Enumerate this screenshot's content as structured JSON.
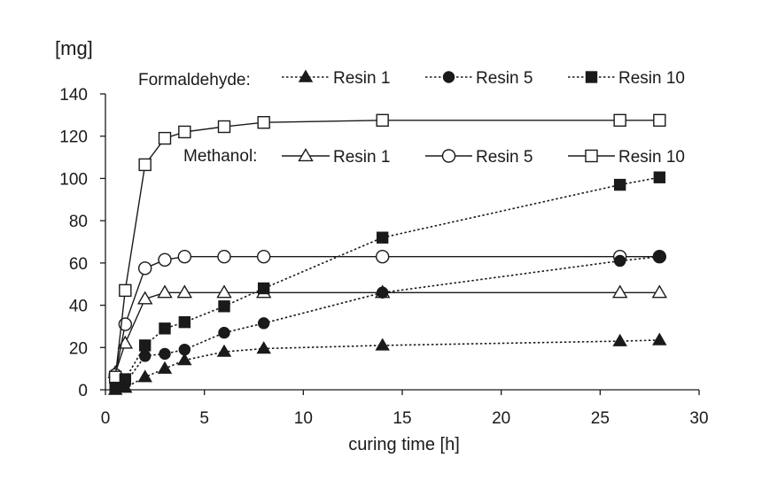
{
  "chart_data": {
    "type": "line",
    "ylabel": "[mg]",
    "xlabel": "curing time  [h]",
    "xlim": [
      0,
      30
    ],
    "ylim": [
      0,
      140
    ],
    "x_ticks": [
      "0",
      "5",
      "10",
      "15",
      "20",
      "25",
      "30"
    ],
    "y_ticks": [
      "0",
      "20",
      "40",
      "60",
      "80",
      "100",
      "120",
      "140"
    ],
    "grid": false,
    "legend": {
      "formaldehyde_label": "Formaldehyde:",
      "methanol_label": "Methanol:"
    },
    "series": [
      {
        "name": "Resin 1",
        "group": "formaldehyde",
        "line": "dotted",
        "marker": "triangle",
        "filled": true,
        "x": [
          0.5,
          1,
          2,
          3,
          4,
          6,
          8,
          14,
          26,
          28
        ],
        "y": [
          0,
          1,
          6,
          10,
          14,
          18,
          19.5,
          21,
          23,
          23.5
        ]
      },
      {
        "name": "Resin 5",
        "group": "formaldehyde",
        "line": "dotted",
        "marker": "circle",
        "filled": true,
        "x": [
          0.5,
          1,
          2,
          3,
          4,
          6,
          8,
          14,
          26,
          28
        ],
        "y": [
          1,
          3,
          16,
          17,
          19,
          27,
          31.5,
          46,
          61,
          63
        ]
      },
      {
        "name": "Resin 10",
        "group": "formaldehyde",
        "line": "dotted",
        "marker": "square",
        "filled": true,
        "x": [
          0.5,
          1,
          2,
          3,
          4,
          6,
          8,
          14,
          26,
          28
        ],
        "y": [
          1,
          5,
          21,
          29,
          32,
          39.5,
          48,
          72,
          97,
          100.5
        ]
      },
      {
        "name": "Resin 1",
        "group": "methanol",
        "line": "solid",
        "marker": "triangle",
        "filled": false,
        "x": [
          0.5,
          1,
          2,
          3,
          4,
          6,
          8,
          14,
          26,
          28
        ],
        "y": [
          8,
          22,
          43,
          46,
          46,
          46,
          46,
          46,
          46,
          46
        ]
      },
      {
        "name": "Resin 5",
        "group": "methanol",
        "line": "solid",
        "marker": "circle",
        "filled": false,
        "x": [
          0.5,
          1,
          2,
          3,
          4,
          6,
          8,
          14,
          26,
          28
        ],
        "y": [
          7,
          31,
          57.5,
          61.5,
          63,
          63,
          63,
          63,
          63,
          63
        ]
      },
      {
        "name": "Resin 10",
        "group": "methanol",
        "line": "solid",
        "marker": "square",
        "filled": false,
        "x": [
          0.5,
          1,
          2,
          3,
          4,
          6,
          8,
          14,
          26,
          28
        ],
        "y": [
          6,
          47,
          106.5,
          119,
          122,
          124.5,
          126.5,
          127.5,
          127.5,
          127.5
        ]
      }
    ]
  }
}
